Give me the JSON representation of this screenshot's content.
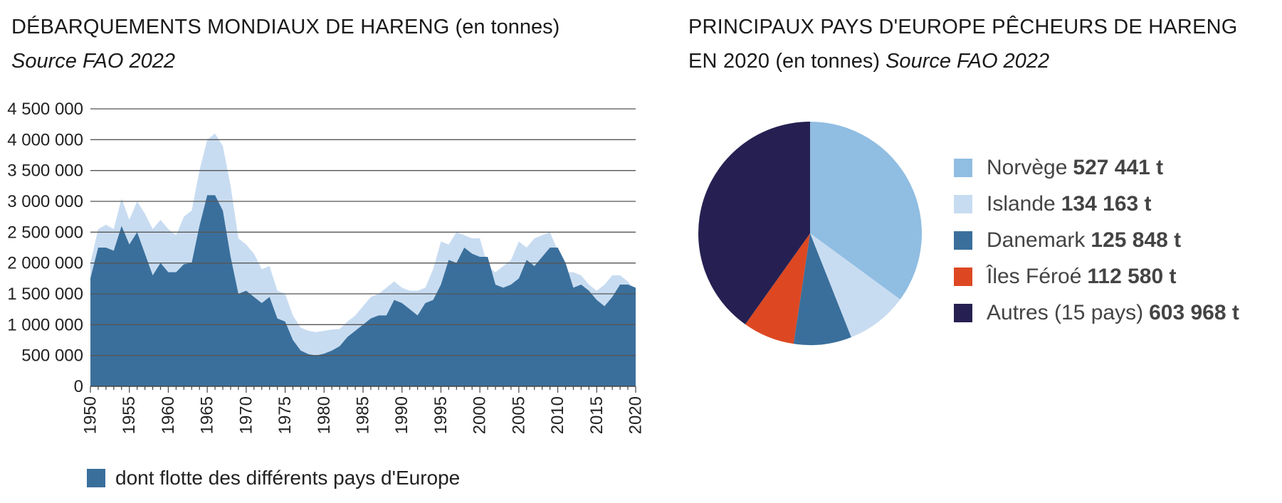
{
  "left": {
    "title_caps": "DÉBARQUEMENTS MONDIAUX DE HARENG",
    "title_unit": "(en tonnes)",
    "source": "Source FAO 2022",
    "legend_label": "dont flotte des différents pays d'Europe"
  },
  "right": {
    "title_caps_1": "PRINCIPAUX PAYS D'EUROPE PÊCHEURS DE HARENG",
    "title_caps_2": "EN 2020",
    "title_unit": "(en tonnes)",
    "source": "Source FAO 2022"
  },
  "colors": {
    "world": "#c8dcf1",
    "europe": "#3a6f9c",
    "grid": "#555555"
  },
  "chart_data": [
    {
      "type": "area",
      "title": "DÉBARQUEMENTS MONDIAUX DE HARENG (en tonnes)",
      "x_range": [
        1950,
        2020
      ],
      "x_ticks": [
        1950,
        1955,
        1960,
        1965,
        1970,
        1975,
        1980,
        1985,
        1990,
        1995,
        2000,
        2005,
        2010,
        2015,
        2020
      ],
      "ylim": [
        0,
        4500000
      ],
      "y_ticks": [
        0,
        500000,
        1000000,
        1500000,
        2000000,
        2500000,
        3000000,
        3500000,
        4000000,
        4500000
      ],
      "y_tick_labels": [
        "0",
        "500 000",
        "1 000 000",
        "1 500 000",
        "2 000 000",
        "2 500 000",
        "3 000 000",
        "3 500 000",
        "4 000 000",
        "4 500 000"
      ],
      "grid": true,
      "x": [
        1950,
        1951,
        1952,
        1953,
        1954,
        1955,
        1956,
        1957,
        1958,
        1959,
        1960,
        1961,
        1962,
        1963,
        1964,
        1965,
        1966,
        1967,
        1968,
        1969,
        1970,
        1971,
        1972,
        1973,
        1974,
        1975,
        1976,
        1977,
        1978,
        1979,
        1980,
        1981,
        1982,
        1983,
        1984,
        1985,
        1986,
        1987,
        1988,
        1989,
        1990,
        1991,
        1992,
        1993,
        1994,
        1995,
        1996,
        1997,
        1998,
        1999,
        2000,
        2001,
        2002,
        2003,
        2004,
        2005,
        2006,
        2007,
        2008,
        2009,
        2010,
        2011,
        2012,
        2013,
        2014,
        2015,
        2016,
        2017,
        2018,
        2019,
        2020
      ],
      "series": [
        {
          "color_key": "world",
          "values": [
            2000000,
            2550000,
            2620000,
            2550000,
            3050000,
            2700000,
            3000000,
            2800000,
            2550000,
            2700000,
            2550000,
            2450000,
            2750000,
            2850000,
            3500000,
            4000000,
            4100000,
            3900000,
            3250000,
            2400000,
            2300000,
            2150000,
            1900000,
            1950000,
            1550000,
            1500000,
            1150000,
            950000,
            900000,
            880000,
            900000,
            920000,
            930000,
            1050000,
            1150000,
            1300000,
            1450000,
            1500000,
            1600000,
            1700000,
            1600000,
            1550000,
            1550000,
            1600000,
            1900000,
            2350000,
            2300000,
            2500000,
            2450000,
            2400000,
            2400000,
            1950000,
            1850000,
            1950000,
            2050000,
            2350000,
            2250000,
            2400000,
            2450000,
            2500000,
            2200000,
            1850000,
            1850000,
            1800000,
            1650000,
            1550000,
            1650000,
            1800000,
            1800000,
            1700000,
            1550000
          ]
        },
        {
          "name": "dont flotte des différents pays d'Europe",
          "color_key": "europe",
          "values": [
            1750000,
            2250000,
            2250000,
            2200000,
            2600000,
            2300000,
            2500000,
            2150000,
            1800000,
            2000000,
            1850000,
            1850000,
            1980000,
            2000000,
            2600000,
            3100000,
            3100000,
            2850000,
            2100000,
            1500000,
            1550000,
            1450000,
            1350000,
            1450000,
            1100000,
            1050000,
            750000,
            580000,
            520000,
            500000,
            530000,
            580000,
            650000,
            800000,
            900000,
            1000000,
            1100000,
            1150000,
            1150000,
            1400000,
            1350000,
            1250000,
            1150000,
            1350000,
            1400000,
            1650000,
            2050000,
            2000000,
            2250000,
            2150000,
            2100000,
            2100000,
            1650000,
            1600000,
            1650000,
            1750000,
            2050000,
            1950000,
            2100000,
            2250000,
            2250000,
            2000000,
            1600000,
            1650000,
            1550000,
            1400000,
            1300000,
            1450000,
            1650000,
            1650000,
            1600000
          ]
        }
      ]
    },
    {
      "type": "pie",
      "title": "PRINCIPAUX PAYS D'EUROPE PÊCHEURS DE HARENG EN 2020 (en tonnes)",
      "unit": "t",
      "slices": [
        {
          "label": "Norvège",
          "value": 527441,
          "value_label": "527 441 t",
          "color": "#90bde2"
        },
        {
          "label": "Islande",
          "value": 134163,
          "value_label": "134 163 t",
          "color": "#c8dcf1"
        },
        {
          "label": "Danemark",
          "value": 125848,
          "value_label": "125 848 t",
          "color": "#3a6f9c"
        },
        {
          "label": "Îles Féroé",
          "value": 112580,
          "value_label": "112 580 t",
          "color": "#dd4822"
        },
        {
          "label": "Autres (15 pays)",
          "value": 603968,
          "value_label": "603 968 t",
          "color": "#262052"
        }
      ]
    }
  ]
}
